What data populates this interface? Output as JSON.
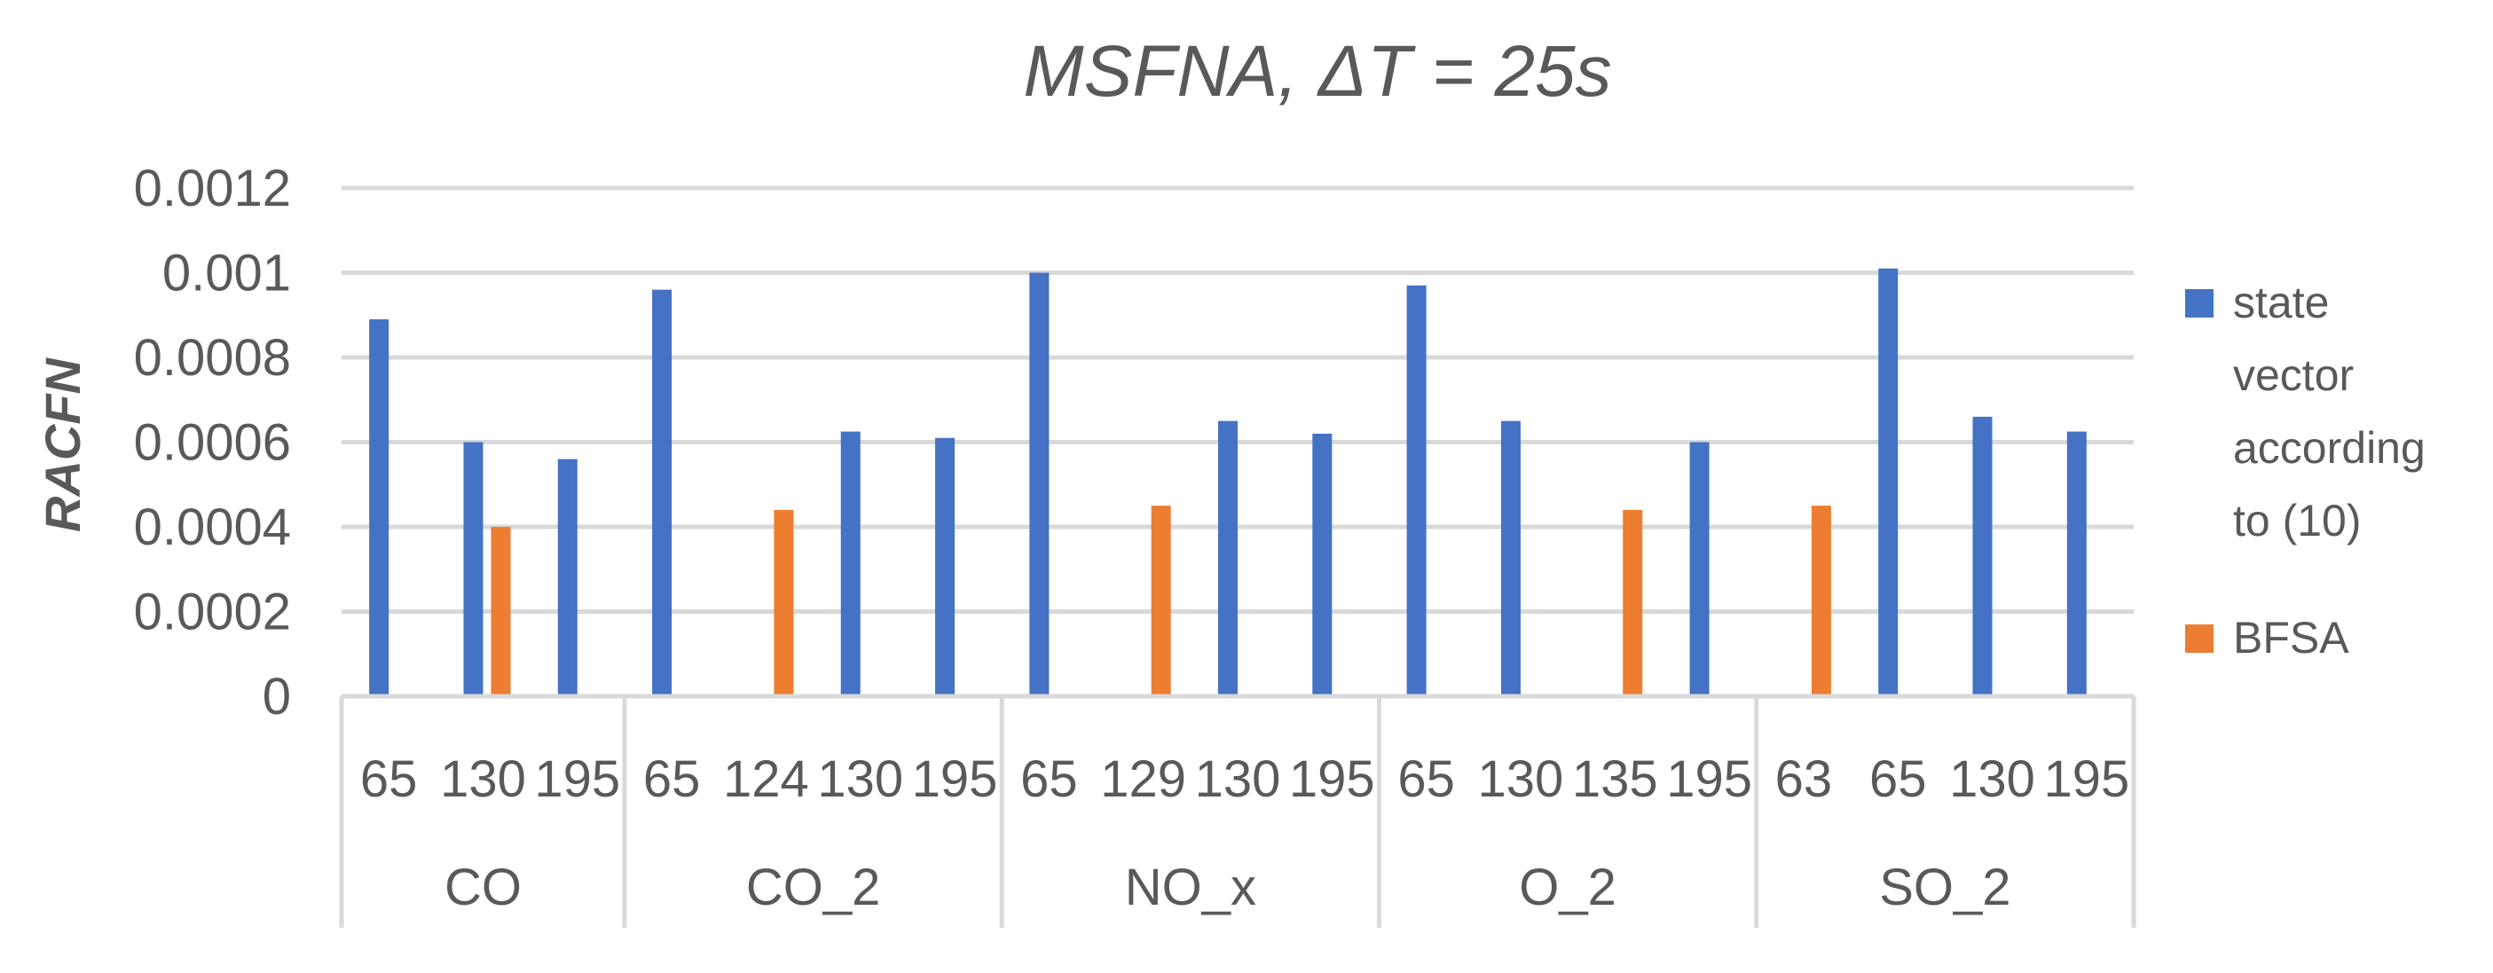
{
  "chart_data": {
    "type": "bar",
    "title": "MSFNA, ΔT = 25s",
    "ylabel": "RACFN",
    "xlabel": "",
    "ylim": [
      0,
      0.0012
    ],
    "yticks": [
      0,
      0.0002,
      0.0004,
      0.0006,
      0.0008,
      0.001,
      0.0012
    ],
    "ytick_labels": [
      "0",
      "0.0002",
      "0.0004",
      "0.0006",
      "0.0008",
      "0.001",
      "0.0012"
    ],
    "grid": true,
    "legend_position": "right",
    "groups": [
      {
        "label": "CO",
        "categories": [
          "65",
          "130",
          "195"
        ]
      },
      {
        "label": "CO_2",
        "categories": [
          "65",
          "124",
          "130",
          "195"
        ]
      },
      {
        "label": "NO_x",
        "categories": [
          "65",
          "129",
          "130",
          "195"
        ]
      },
      {
        "label": "O_2",
        "categories": [
          "65",
          "130",
          "135",
          "195"
        ]
      },
      {
        "label": "SO_2",
        "categories": [
          "63",
          "65",
          "130",
          "195"
        ]
      }
    ],
    "series": [
      {
        "name": "state vector according to (10)",
        "legend_lines": [
          "state",
          "vector",
          "according",
          "to (10)"
        ],
        "color": "#4472C4",
        "values": [
          0.00089,
          0.0006,
          0.00056,
          0.00096,
          null,
          0.000625,
          0.00061,
          0.001,
          null,
          0.00065,
          0.00062,
          0.00097,
          0.00065,
          null,
          0.0006,
          null,
          0.00101,
          0.00066,
          0.000625
        ]
      },
      {
        "name": "BFSA",
        "legend_lines": [
          "BFSA"
        ],
        "color": "#ED7D31",
        "values": [
          null,
          0.0004,
          null,
          null,
          0.00044,
          null,
          null,
          null,
          0.00045,
          null,
          null,
          null,
          null,
          0.00044,
          null,
          0.00045,
          null,
          null,
          null
        ]
      }
    ]
  }
}
